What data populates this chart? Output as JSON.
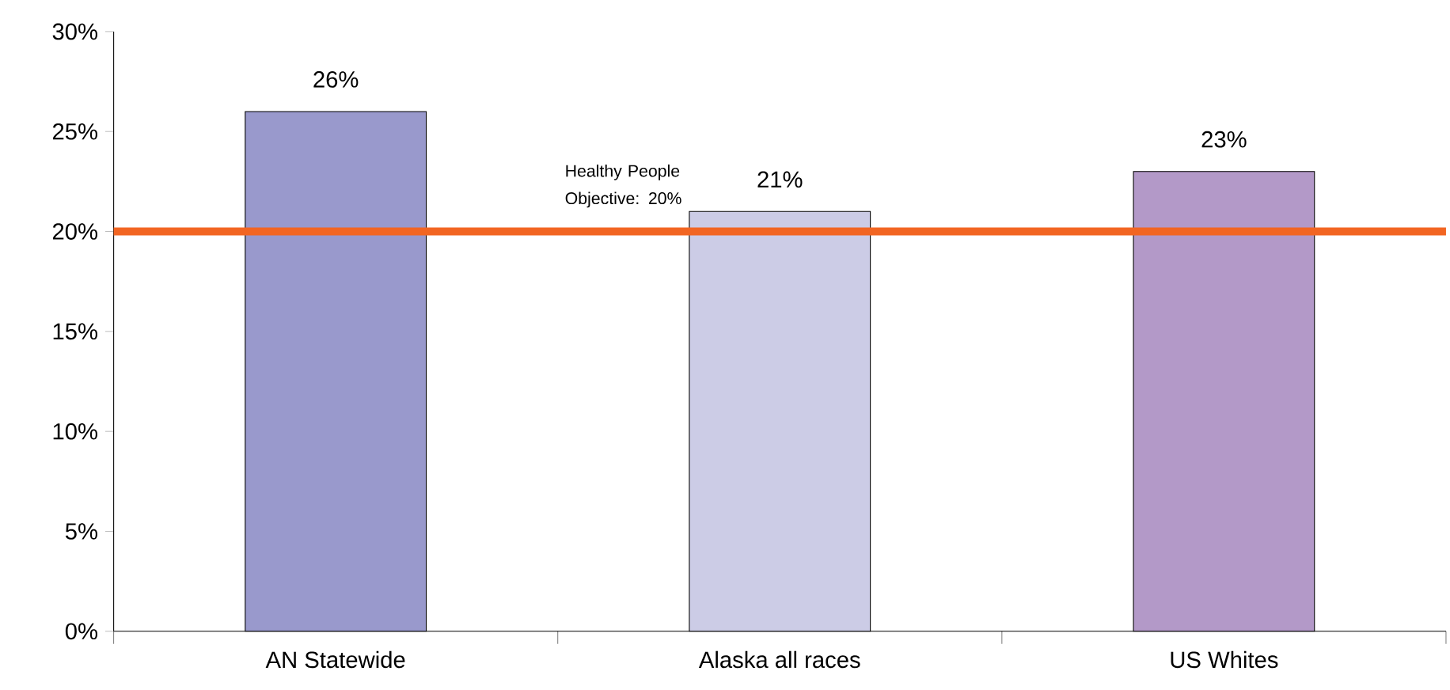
{
  "chart_data": {
    "type": "bar",
    "categories": [
      "AN Statewide",
      "Alaska all races",
      "US Whites"
    ],
    "values": [
      26,
      21,
      23
    ],
    "colors": [
      "#9999cc",
      "#ccccE6",
      "#b399c8"
    ],
    "value_labels": [
      "26%",
      "21%",
      "23%"
    ],
    "ylim": [
      0,
      30
    ],
    "yticks": [
      {
        "value": 0,
        "label": "0%"
      },
      {
        "value": 5,
        "label": "5%"
      },
      {
        "value": 10,
        "label": "10%"
      },
      {
        "value": 15,
        "label": "15%"
      },
      {
        "value": 20,
        "label": "20%"
      },
      {
        "value": 25,
        "label": "25%"
      },
      {
        "value": 30,
        "label": "30%"
      }
    ],
    "ref_lines": [
      {
        "axis": "y",
        "value": 20,
        "label": "Healthy People Objective: 20%",
        "color": "#f26522"
      }
    ],
    "grid": false
  }
}
